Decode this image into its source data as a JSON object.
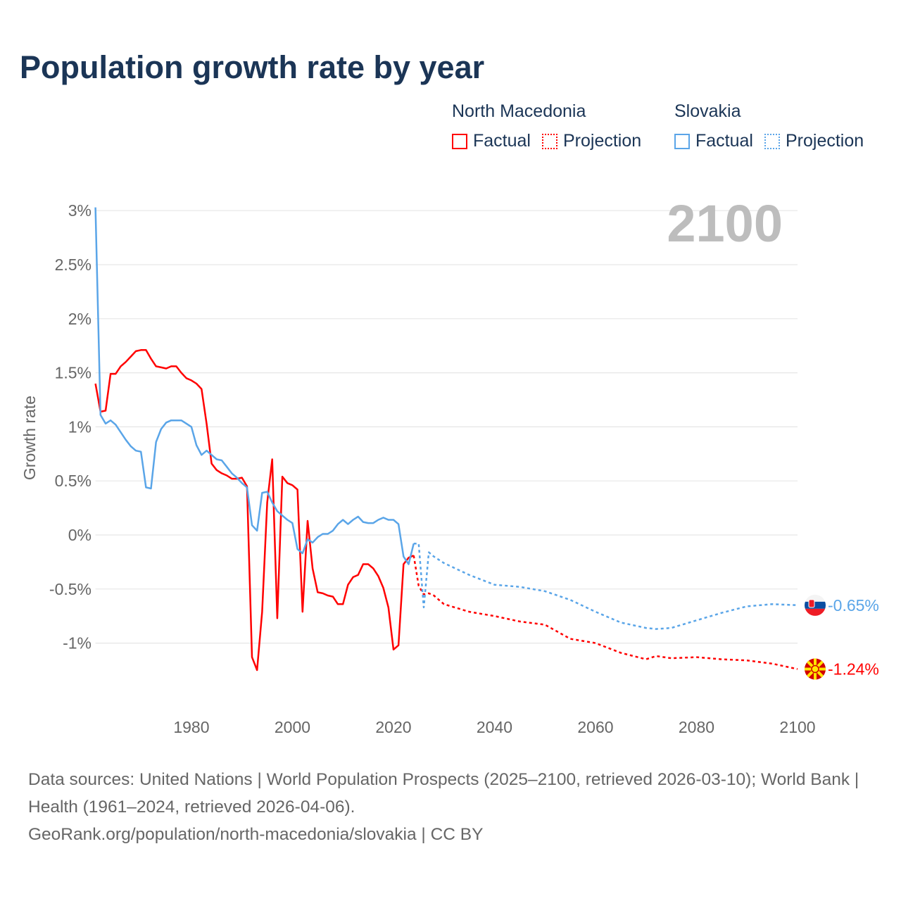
{
  "title": "Population growth rate by year",
  "legend": {
    "groups": [
      {
        "name": "North Macedonia",
        "color": "#ff0000",
        "factual_label": "Factual",
        "projection_label": "Projection"
      },
      {
        "name": "Slovakia",
        "color": "#5aa5e8",
        "factual_label": "Factual",
        "projection_label": "Projection"
      }
    ]
  },
  "year_display": "2100",
  "footer": {
    "sources": "Data sources: United Nations | World Population Prospects (2025–2100, retrieved 2026-03-10); World Bank | Health (1961–2024, retrieved 2026-04-06).",
    "link": "GeoRank.org/population/north-macedonia/slovakia | CC BY"
  },
  "chart_data": {
    "type": "line",
    "title": "Population growth rate by year",
    "xlabel": "",
    "ylabel": "Growth rate",
    "xlim": [
      1961,
      2100
    ],
    "ylim": [
      -1.5,
      3.05
    ],
    "x_ticks": [
      1980,
      2000,
      2020,
      2040,
      2060,
      2080,
      2100
    ],
    "x_tick_labels": [
      "1980",
      "2000",
      "2020",
      "2040",
      "2060",
      "2080",
      "2100"
    ],
    "y_ticks": [
      3,
      2.5,
      2,
      1.5,
      1,
      0.5,
      0,
      -0.5,
      -1
    ],
    "y_tick_labels": [
      "3%",
      "2.5%",
      "2%",
      "1.5%",
      "1%",
      "0.5%",
      "0%",
      "-0.5%",
      "-1%"
    ],
    "grid": true,
    "legend_position": "top-right",
    "series": [
      {
        "name": "North Macedonia",
        "kind": "Factual",
        "color": "#ff0000",
        "x": [
          1961,
          1962,
          1963,
          1964,
          1965,
          1966,
          1967,
          1968,
          1969,
          1970,
          1971,
          1972,
          1973,
          1974,
          1975,
          1976,
          1977,
          1978,
          1979,
          1980,
          1981,
          1982,
          1983,
          1984,
          1985,
          1986,
          1987,
          1988,
          1989,
          1990,
          1991,
          1992,
          1993,
          1994,
          1995,
          1996,
          1997,
          1998,
          1999,
          2000,
          2001,
          2002,
          2003,
          2004,
          2005,
          2006,
          2007,
          2008,
          2009,
          2010,
          2011,
          2012,
          2013,
          2014,
          2015,
          2016,
          2017,
          2018,
          2019,
          2020,
          2021,
          2022,
          2023,
          2024
        ],
        "y": [
          1.4,
          1.14,
          1.15,
          1.49,
          1.49,
          1.56,
          1.6,
          1.65,
          1.7,
          1.71,
          1.71,
          1.63,
          1.56,
          1.55,
          1.54,
          1.56,
          1.56,
          1.5,
          1.45,
          1.43,
          1.4,
          1.35,
          1.03,
          0.66,
          0.6,
          0.57,
          0.55,
          0.52,
          0.52,
          0.53,
          0.45,
          -1.13,
          -1.25,
          -0.71,
          0.3,
          0.7,
          -0.77,
          0.54,
          0.48,
          0.46,
          0.42,
          -0.71,
          0.13,
          -0.31,
          -0.53,
          -0.54,
          -0.56,
          -0.57,
          -0.64,
          -0.64,
          -0.46,
          -0.39,
          -0.37,
          -0.27,
          -0.27,
          -0.31,
          -0.38,
          -0.49,
          -0.67,
          -1.06,
          -1.02,
          -0.27,
          -0.21,
          -0.19
        ]
      },
      {
        "name": "North Macedonia",
        "kind": "Projection",
        "color": "#ff0000",
        "x": [
          2024,
          2025,
          2026,
          2027,
          2028,
          2030,
          2035,
          2040,
          2045,
          2050,
          2055,
          2060,
          2065,
          2070,
          2072,
          2075,
          2080,
          2085,
          2090,
          2095,
          2100
        ],
        "y": [
          -0.19,
          -0.47,
          -0.55,
          -0.54,
          -0.56,
          -0.64,
          -0.71,
          -0.75,
          -0.8,
          -0.83,
          -0.96,
          -1.0,
          -1.09,
          -1.15,
          -1.12,
          -1.14,
          -1.13,
          -1.15,
          -1.16,
          -1.19,
          -1.24
        ]
      },
      {
        "name": "Slovakia",
        "kind": "Factual",
        "color": "#5aa5e8",
        "x": [
          1961,
          1962,
          1963,
          1964,
          1965,
          1966,
          1967,
          1968,
          1969,
          1970,
          1971,
          1972,
          1973,
          1974,
          1975,
          1976,
          1977,
          1978,
          1979,
          1980,
          1981,
          1982,
          1983,
          1984,
          1985,
          1986,
          1987,
          1988,
          1989,
          1990,
          1991,
          1992,
          1993,
          1994,
          1995,
          1996,
          1997,
          1998,
          1999,
          2000,
          2001,
          2002,
          2003,
          2004,
          2005,
          2006,
          2007,
          2008,
          2009,
          2010,
          2011,
          2012,
          2013,
          2014,
          2015,
          2016,
          2017,
          2018,
          2019,
          2020,
          2021,
          2022,
          2023,
          2024
        ],
        "y": [
          3.03,
          1.11,
          1.03,
          1.06,
          1.02,
          0.95,
          0.88,
          0.82,
          0.78,
          0.77,
          0.44,
          0.43,
          0.86,
          0.98,
          1.04,
          1.06,
          1.06,
          1.06,
          1.03,
          1.0,
          0.83,
          0.74,
          0.78,
          0.74,
          0.7,
          0.69,
          0.63,
          0.57,
          0.53,
          0.48,
          0.44,
          0.09,
          0.04,
          0.39,
          0.4,
          0.3,
          0.22,
          0.18,
          0.14,
          0.11,
          -0.13,
          -0.17,
          -0.04,
          -0.07,
          -0.02,
          0.01,
          0.01,
          0.04,
          0.1,
          0.14,
          0.1,
          0.14,
          0.17,
          0.12,
          0.11,
          0.11,
          0.14,
          0.16,
          0.14,
          0.14,
          0.1,
          -0.2,
          -0.27,
          -0.08
        ]
      },
      {
        "name": "Slovakia",
        "kind": "Projection",
        "color": "#5aa5e8",
        "x": [
          2024,
          2025,
          2026,
          2027,
          2028,
          2030,
          2035,
          2040,
          2045,
          2050,
          2055,
          2060,
          2065,
          2070,
          2072,
          2075,
          2080,
          2085,
          2090,
          2095,
          2100
        ],
        "y": [
          -0.08,
          -0.08,
          -0.67,
          -0.16,
          -0.2,
          -0.26,
          -0.37,
          -0.46,
          -0.48,
          -0.52,
          -0.6,
          -0.71,
          -0.81,
          -0.86,
          -0.87,
          -0.86,
          -0.79,
          -0.72,
          -0.66,
          -0.64,
          -0.65
        ]
      }
    ],
    "end_labels": [
      {
        "country": "Slovakia",
        "value_label": "-0.65%",
        "value": -0.65,
        "color": "#5aa5e8"
      },
      {
        "country": "North Macedonia",
        "value_label": "-1.24%",
        "value": -1.24,
        "color": "#ff0000"
      }
    ]
  }
}
